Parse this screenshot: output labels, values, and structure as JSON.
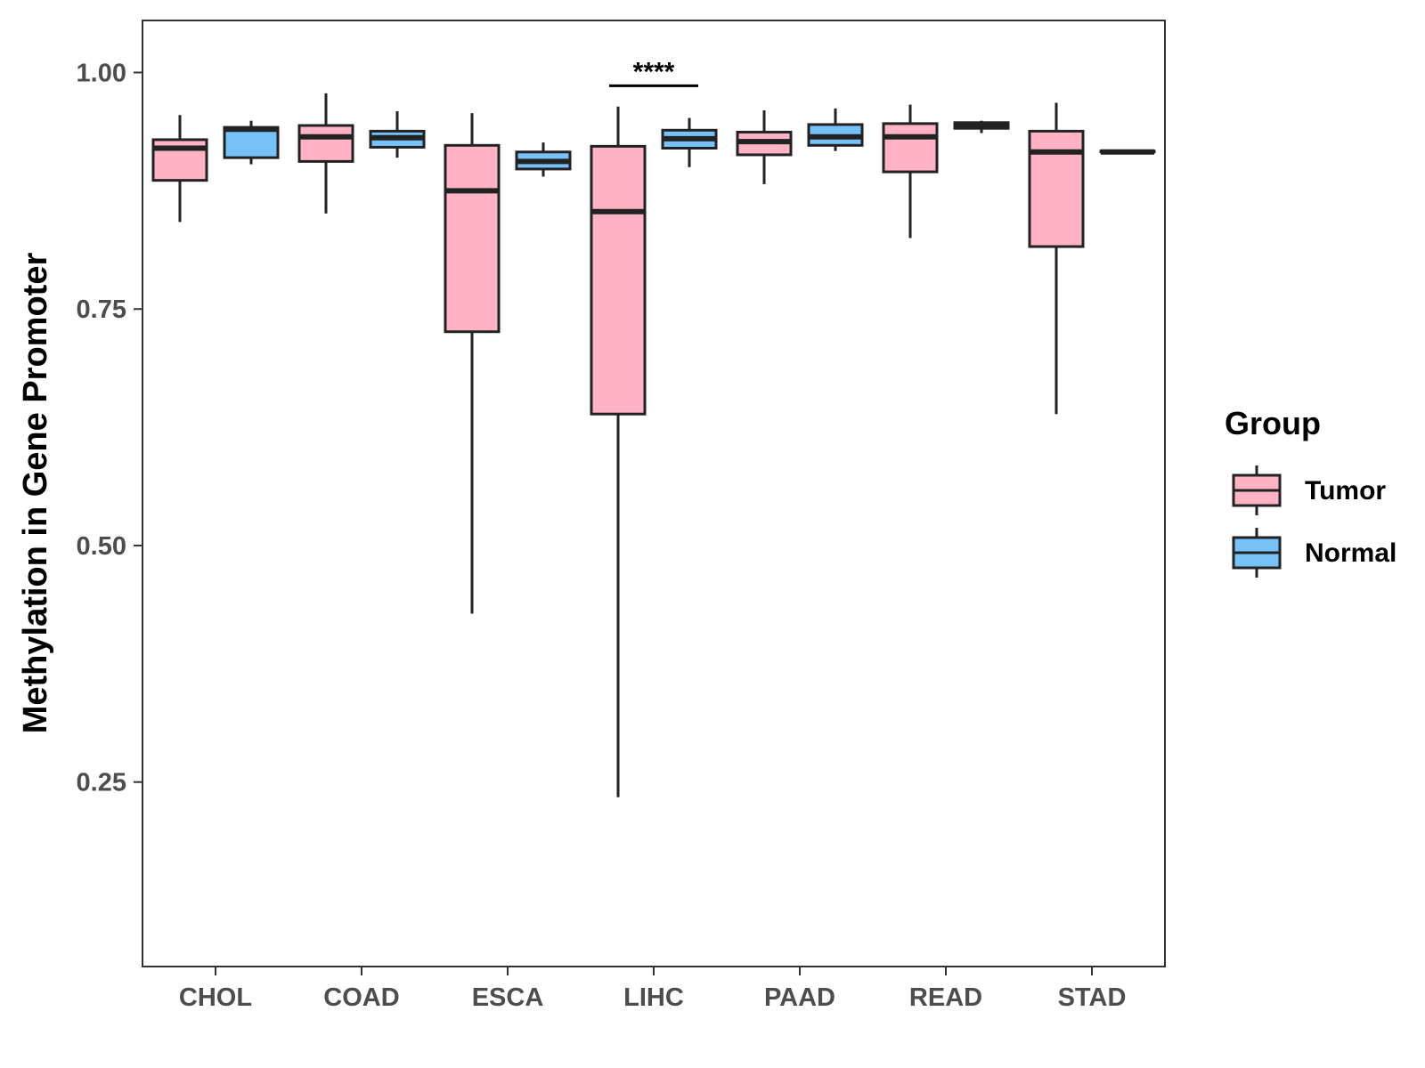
{
  "chart_data": {
    "type": "boxplot",
    "title": "",
    "xlabel": "",
    "ylabel": "Methylation in Gene Promoter",
    "ylim": [
      0.055,
      1.055
    ],
    "yticks": [
      0.25,
      0.5,
      0.75,
      1.0
    ],
    "ytick_labels": [
      "0.25",
      "0.50",
      "0.75",
      "1.00"
    ],
    "categories": [
      "CHOL",
      "COAD",
      "ESCA",
      "LIHC",
      "PAAD",
      "READ",
      "STAD"
    ],
    "legend": {
      "title": "Group",
      "position": "right",
      "entries": [
        {
          "name": "Tumor",
          "color": "#ffb3c4"
        },
        {
          "name": "Normal",
          "color": "#76c2f8"
        }
      ]
    },
    "series": [
      {
        "name": "Tumor",
        "color": "#ffb3c4",
        "boxes": [
          {
            "category": "CHOL",
            "min": 0.842,
            "q1": 0.886,
            "median": 0.92,
            "q3": 0.929,
            "max": 0.955
          },
          {
            "category": "COAD",
            "min": 0.851,
            "q1": 0.906,
            "median": 0.932,
            "q3": 0.944,
            "max": 0.978
          },
          {
            "category": "ESCA",
            "min": 0.428,
            "q1": 0.726,
            "median": 0.875,
            "q3": 0.923,
            "max": 0.957
          },
          {
            "category": "LIHC",
            "min": 0.234,
            "q1": 0.639,
            "median": 0.853,
            "q3": 0.922,
            "max": 0.964
          },
          {
            "category": "PAAD",
            "min": 0.882,
            "q1": 0.913,
            "median": 0.927,
            "q3": 0.937,
            "max": 0.96
          },
          {
            "category": "READ",
            "min": 0.825,
            "q1": 0.895,
            "median": 0.932,
            "q3": 0.946,
            "max": 0.966
          },
          {
            "category": "STAD",
            "min": 0.639,
            "q1": 0.816,
            "median": 0.916,
            "q3": 0.938,
            "max": 0.968
          }
        ]
      },
      {
        "name": "Normal",
        "color": "#76c2f8",
        "boxes": [
          {
            "category": "CHOL",
            "min": 0.903,
            "q1": 0.91,
            "median": 0.94,
            "q3": 0.942,
            "max": 0.949
          },
          {
            "category": "COAD",
            "min": 0.91,
            "q1": 0.921,
            "median": 0.931,
            "q3": 0.938,
            "max": 0.959
          },
          {
            "category": "ESCA",
            "min": 0.89,
            "q1": 0.898,
            "median": 0.906,
            "q3": 0.916,
            "max": 0.926
          },
          {
            "category": "LIHC",
            "min": 0.9,
            "q1": 0.92,
            "median": 0.93,
            "q3": 0.939,
            "max": 0.952
          },
          {
            "category": "PAAD",
            "min": 0.917,
            "q1": 0.923,
            "median": 0.932,
            "q3": 0.945,
            "max": 0.962
          },
          {
            "category": "READ",
            "min": 0.936,
            "q1": 0.941,
            "median": 0.944,
            "q3": 0.947,
            "max": 0.949
          },
          {
            "category": "STAD",
            "min": 0.915,
            "q1": 0.916,
            "median": 0.916,
            "q3": 0.917,
            "max": 0.918
          }
        ]
      }
    ],
    "annotations": [
      {
        "text": "****",
        "category": "LIHC",
        "y": 0.986
      }
    ]
  }
}
